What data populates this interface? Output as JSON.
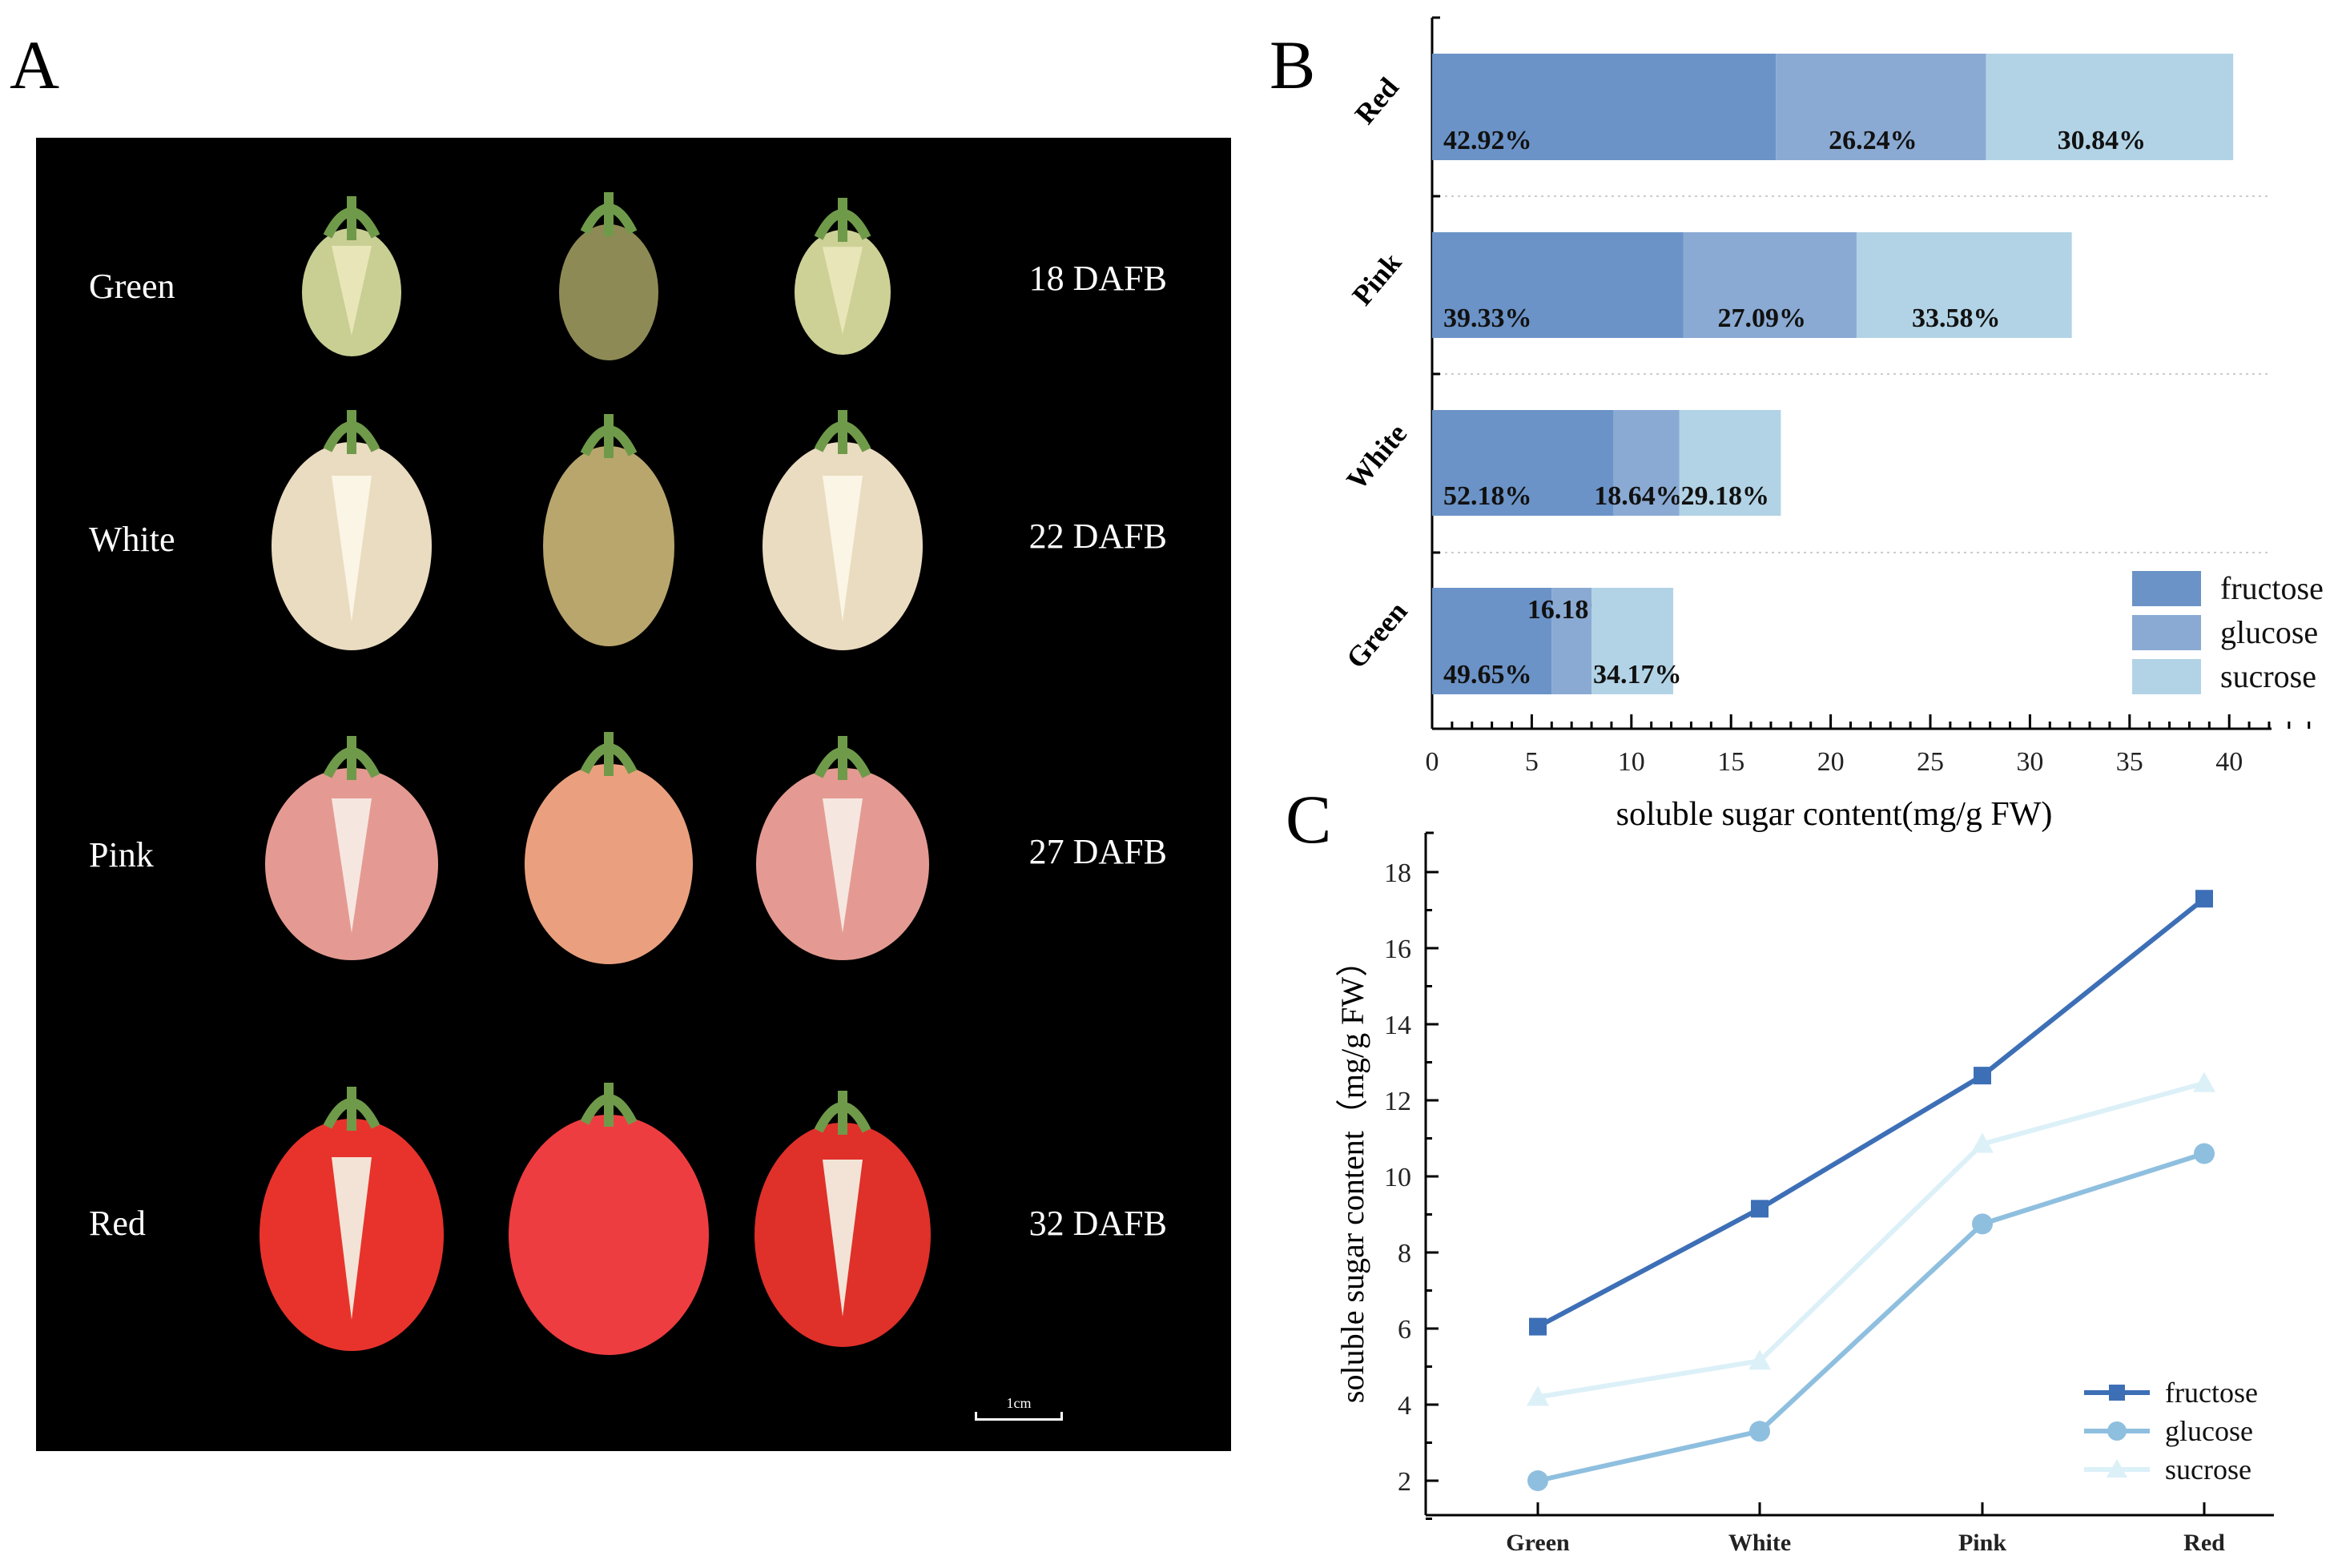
{
  "panel_a": {
    "letter": "A",
    "rows": [
      {
        "stage": "Green",
        "dafb": "18 DAFB"
      },
      {
        "stage": "White",
        "dafb": "22 DAFB"
      },
      {
        "stage": "Pink",
        "dafb": "27 DAFB"
      },
      {
        "stage": "Red",
        "dafb": "32 DAFB"
      }
    ],
    "scale_bar": "1cm"
  },
  "panel_b": {
    "letter": "B"
  },
  "panel_c": {
    "letter": "C"
  },
  "colors": {
    "fructose": "#6b93c7",
    "glucose": "#8aaad3",
    "sucrose": "#b2d3e6",
    "line_fructose": "#3d6fb6",
    "line_glucose": "#8fbfdf",
    "line_sucrose": "#dcf0f8"
  },
  "chart_data": [
    {
      "type": "bar",
      "orientation": "horizontal-stacked",
      "categories": [
        "Green",
        "White",
        "Pink",
        "Red"
      ],
      "series": [
        {
          "name": "fructose",
          "values": [
            6.0,
            9.1,
            12.6,
            17.25
          ],
          "labels": [
            "49.65%",
            "52.18%",
            "39.33%",
            "42.92%"
          ]
        },
        {
          "name": "glucose",
          "values": [
            2.0,
            3.3,
            8.7,
            10.55
          ],
          "labels": [
            "16.18%",
            "18.64%",
            "27.09%",
            "26.24%"
          ]
        },
        {
          "name": "sucrose",
          "values": [
            4.1,
            5.1,
            10.8,
            12.4
          ],
          "labels": [
            "34.17%",
            "29.18%",
            "33.58%",
            "30.84%"
          ]
        }
      ],
      "xlabel": "soluble sugar content(mg/g FW)",
      "xlim": [
        0,
        44
      ],
      "xticks": [
        "0",
        "5",
        "10",
        "15",
        "20",
        "25",
        "30",
        "35",
        "40"
      ],
      "legend": [
        "fructose",
        "glucose",
        "sucrose"
      ],
      "legend_position": "bottom-right"
    },
    {
      "type": "line",
      "title": "soluble sugar content(mg/g FW)",
      "categories": [
        "Green",
        "White",
        "Pink",
        "Red"
      ],
      "series": [
        {
          "name": "fructose",
          "marker": "square",
          "values": [
            6.05,
            9.15,
            12.65,
            17.3
          ]
        },
        {
          "name": "glucose",
          "marker": "circle",
          "values": [
            2.0,
            3.3,
            8.75,
            10.6
          ]
        },
        {
          "name": "sucrose",
          "marker": "triangle",
          "values": [
            4.2,
            5.15,
            10.85,
            12.45
          ]
        }
      ],
      "ylabel": "soluble sugar content（mg/g FW）",
      "ylim": [
        1,
        18.9
      ],
      "yticks": [
        "2",
        "4",
        "6",
        "8",
        "10",
        "12",
        "14",
        "16",
        "18"
      ],
      "legend": [
        "fructose",
        "glucose",
        "sucrose"
      ],
      "legend_position": "bottom-right"
    }
  ]
}
